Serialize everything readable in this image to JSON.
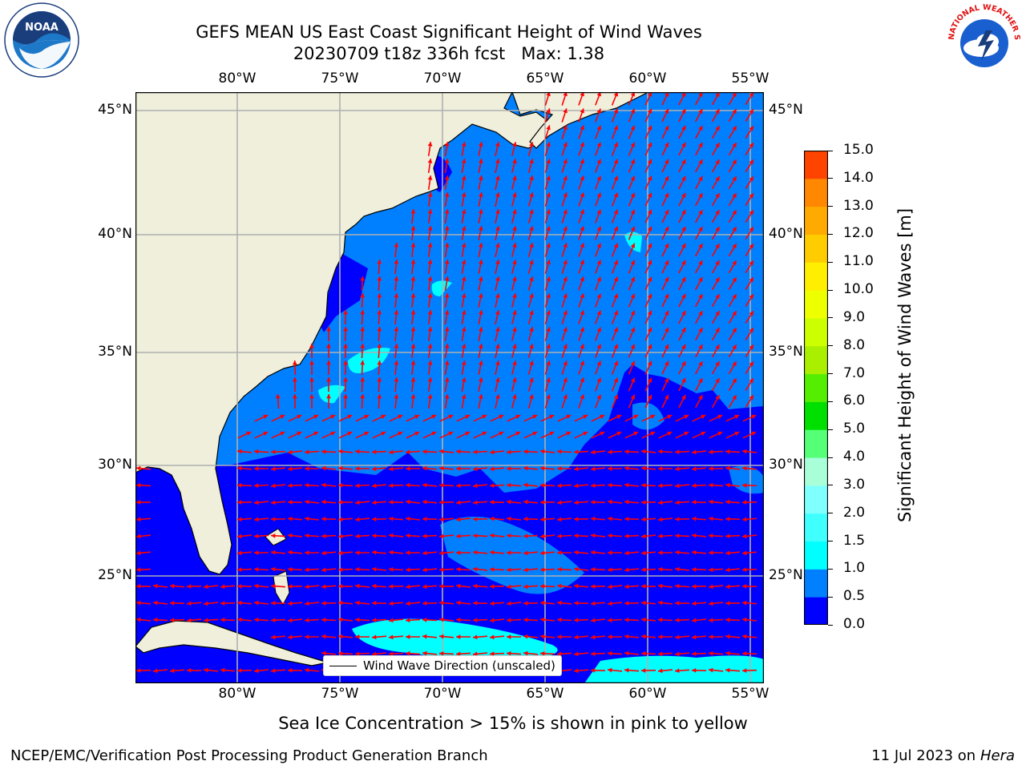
{
  "header": {
    "title_line1": "GEFS MEAN US East Coast Significant Height of Wind Waves",
    "title_line2": "20230709 t18z 336h fcst   Max: 1.38"
  },
  "map": {
    "lon_ticks": [
      "80°W",
      "75°W",
      "70°W",
      "65°W",
      "60°W",
      "55°W"
    ],
    "lat_ticks": [
      "45°N",
      "40°N",
      "35°N",
      "30°N",
      "25°N"
    ],
    "legend_label": "Wind Wave Direction (unscaled)",
    "arrow_color": "#ff0000",
    "land_color": "#efefdc",
    "grid_color": "#b0b0b0"
  },
  "colorbar": {
    "title": "Significant Height of Wind Waves [m]",
    "ticks": [
      "0.0",
      "0.5",
      "1.0",
      "1.5",
      "2.0",
      "3.0",
      "4.0",
      "5.0",
      "6.0",
      "7.0",
      "8.0",
      "9.0",
      "10.0",
      "11.0",
      "12.0",
      "13.0",
      "14.0",
      "15.0"
    ],
    "colors": [
      "#0000ff",
      "#0080ff",
      "#00ffff",
      "#40ffff",
      "#80ffff",
      "#a8ffd8",
      "#55ff77",
      "#00e000",
      "#55ee00",
      "#aaee00",
      "#ccff00",
      "#eeff00",
      "#ffee00",
      "#ffcc00",
      "#ffaa00",
      "#ff8800",
      "#ff4400",
      "#ff0000"
    ]
  },
  "caption": "Sea Ice Concentration > 15% is shown in pink to yellow",
  "footer": {
    "left": "NCEP/EMC/Verification Post Processing Product Generation Branch",
    "date": "11 Jul 2023 on ",
    "host": "Hera"
  },
  "logos": {
    "noaa_text": "NOAA",
    "nws_text": "NATIONAL WEATHER SERVICE"
  }
}
